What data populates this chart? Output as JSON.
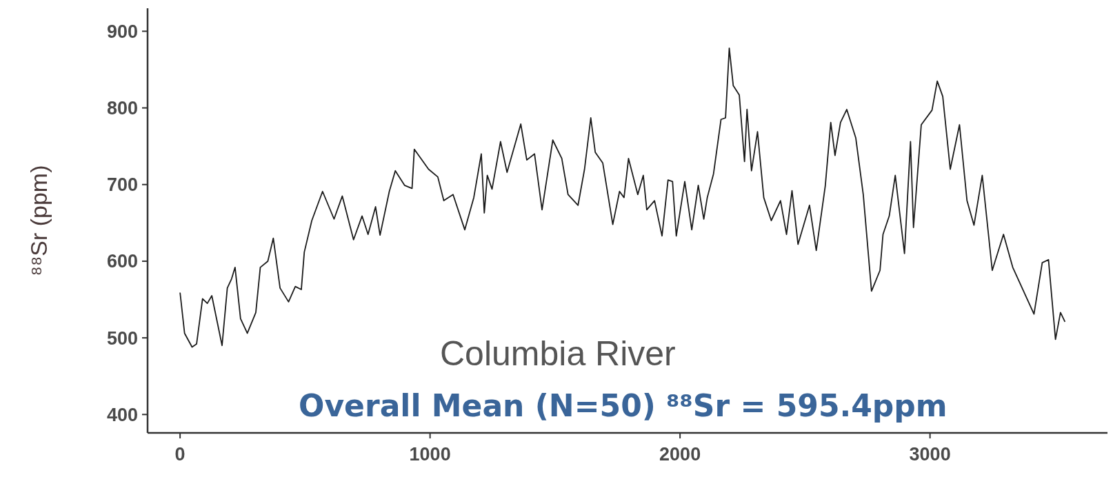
{
  "chart_data": {
    "type": "line",
    "ylabel": "⁸⁸Sr (ppm)",
    "annotations": [
      "Columbia River",
      "Overall Mean (N=50) ⁸⁸Sr  = 595.4ppm"
    ],
    "xlim": [
      -130,
      3710
    ],
    "ylim": [
      376,
      930
    ],
    "xticks": [
      0,
      1000,
      2000,
      3000
    ],
    "yticks": [
      400,
      500,
      600,
      700,
      800,
      900
    ],
    "grid": false,
    "marker": "none",
    "line_style": "solid",
    "series": [
      {
        "color": "#1a1a1a",
        "x": [
          0,
          18,
          48,
          66,
          90,
          109,
          127,
          151,
          168,
          189,
          206,
          220,
          242,
          269,
          303,
          321,
          351,
          373,
          400,
          434,
          461,
          485,
          497,
          527,
          570,
          616,
          649,
          694,
          728,
          752,
          782,
          800,
          837,
          861,
          898,
          928,
          937,
          994,
          1031,
          1055,
          1092,
          1139,
          1175,
          1205,
          1217,
          1229,
          1248,
          1282,
          1308,
          1363,
          1387,
          1418,
          1448,
          1491,
          1527,
          1552,
          1592,
          1618,
          1643,
          1661,
          1691,
          1731,
          1758,
          1776,
          1794,
          1831,
          1853,
          1867,
          1898,
          1928,
          1952,
          1970,
          1985,
          2019,
          2047,
          2073,
          2095,
          2109,
          2134,
          2164,
          2182,
          2197,
          2213,
          2237,
          2258,
          2268,
          2286,
          2310,
          2335,
          2365,
          2402,
          2426,
          2448,
          2472,
          2518,
          2545,
          2581,
          2603,
          2620,
          2642,
          2667,
          2703,
          2733,
          2766,
          2800,
          2812,
          2837,
          2861,
          2898,
          2922,
          2934,
          2965,
          3008,
          3029,
          3051,
          3081,
          3118,
          3148,
          3176,
          3209,
          3249,
          3294,
          3331,
          3416,
          3449,
          3474,
          3502,
          3522,
          3540
        ],
        "values": [
          559,
          506,
          488,
          492,
          551,
          545,
          555,
          517,
          490,
          565,
          577,
          592,
          525,
          506,
          533,
          592,
          600,
          630,
          565,
          547,
          567,
          563,
          612,
          653,
          691,
          655,
          685,
          628,
          659,
          635,
          671,
          634,
          691,
          718,
          699,
          695,
          746,
          720,
          710,
          679,
          687,
          641,
          683,
          740,
          663,
          712,
          694,
          756,
          716,
          779,
          732,
          740,
          667,
          758,
          734,
          687,
          673,
          720,
          787,
          742,
          728,
          648,
          691,
          683,
          734,
          687,
          712,
          667,
          679,
          633,
          706,
          704,
          633,
          704,
          641,
          699,
          655,
          683,
          714,
          785,
          787,
          878,
          829,
          817,
          730,
          798,
          718,
          769,
          683,
          653,
          679,
          635,
          692,
          622,
          673,
          614,
          698,
          781,
          738,
          781,
          798,
          761,
          687,
          561,
          588,
          635,
          659,
          712,
          610,
          756,
          644,
          778,
          797,
          835,
          815,
          720,
          778,
          679,
          647,
          712,
          588,
          635,
          592,
          531,
          598,
          602,
          498,
          533,
          521
        ]
      }
    ]
  }
}
